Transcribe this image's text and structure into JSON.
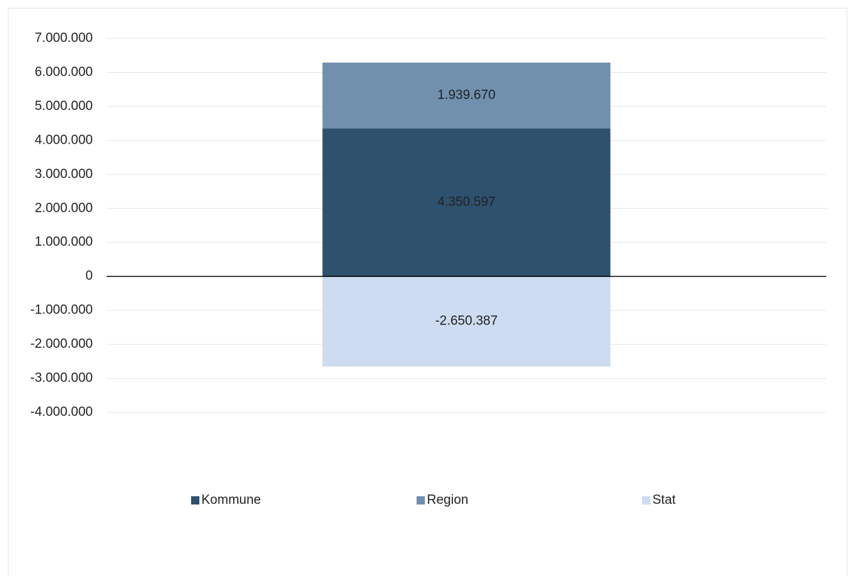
{
  "chart_data": {
    "type": "stacked_bar",
    "categories": [
      null
    ],
    "series": [
      {
        "name": "Kommune",
        "color": "#2e516e",
        "values": [
          4350597
        ],
        "value_labels": [
          "4.350.597"
        ]
      },
      {
        "name": "Region",
        "color": "#7090ae",
        "values": [
          1939670
        ],
        "value_labels": [
          "1.939.670"
        ]
      },
      {
        "name": "Stat",
        "color": "#cddcf0",
        "values": [
          -2650387
        ],
        "value_labels": [
          "-2.650.387"
        ]
      }
    ],
    "ylim": [
      -4000000,
      7000000
    ],
    "yticks": [
      {
        "value": 7000000,
        "label": "7.000.000"
      },
      {
        "value": 6000000,
        "label": "6.000.000"
      },
      {
        "value": 5000000,
        "label": "5.000.000"
      },
      {
        "value": 4000000,
        "label": "4.000.000"
      },
      {
        "value": 3000000,
        "label": "3.000.000"
      },
      {
        "value": 2000000,
        "label": "2.000.000"
      },
      {
        "value": 1000000,
        "label": "1.000.000"
      },
      0,
      {
        "value": -1000000,
        "label": "-1.000.000"
      },
      {
        "value": -2000000,
        "label": "-2.000.000"
      },
      {
        "value": -3000000,
        "label": "-3.000.000"
      },
      {
        "value": -4000000,
        "label": "-4.000.000"
      }
    ],
    "grid": true,
    "legend": "bottom"
  }
}
